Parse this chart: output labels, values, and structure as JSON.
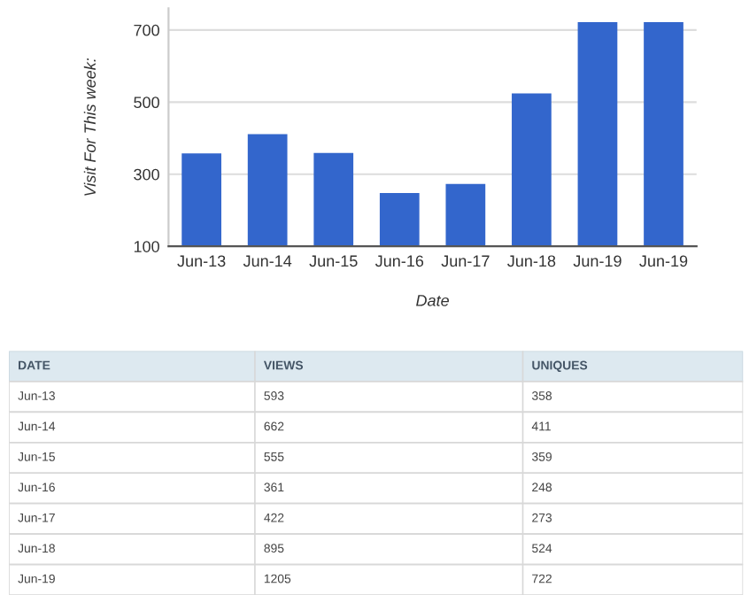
{
  "chart_data": [
    {
      "type": "bar",
      "xlabel": "Date",
      "ylabel": "Visit For This week:",
      "categories": [
        "Jun-13",
        "Jun-14",
        "Jun-15",
        "Jun-16",
        "Jun-17",
        "Jun-18",
        "Jun-19",
        "Jun-19"
      ],
      "series": [
        {
          "color": "#3366cc",
          "values": [
            358,
            411,
            359,
            248,
            273,
            524,
            722,
            722
          ]
        }
      ],
      "ylim": [
        100,
        760
      ],
      "yticks": [
        100,
        300,
        500,
        700
      ],
      "grid": "y"
    },
    {
      "type": "other",
      "xlabel": "DATE",
      "categories": [
        "Jun-13",
        "Jun-14",
        "Jun-15",
        "Jun-16",
        "Jun-17",
        "Jun-18",
        "Jun-19"
      ],
      "series": [
        {
          "name": "VIEWS",
          "values": [
            593,
            662,
            555,
            361,
            422,
            895,
            1205
          ]
        },
        {
          "name": "UNIQUES",
          "values": [
            358,
            411,
            359,
            248,
            273,
            524,
            722
          ]
        }
      ],
      "data_labels": true
    }
  ]
}
